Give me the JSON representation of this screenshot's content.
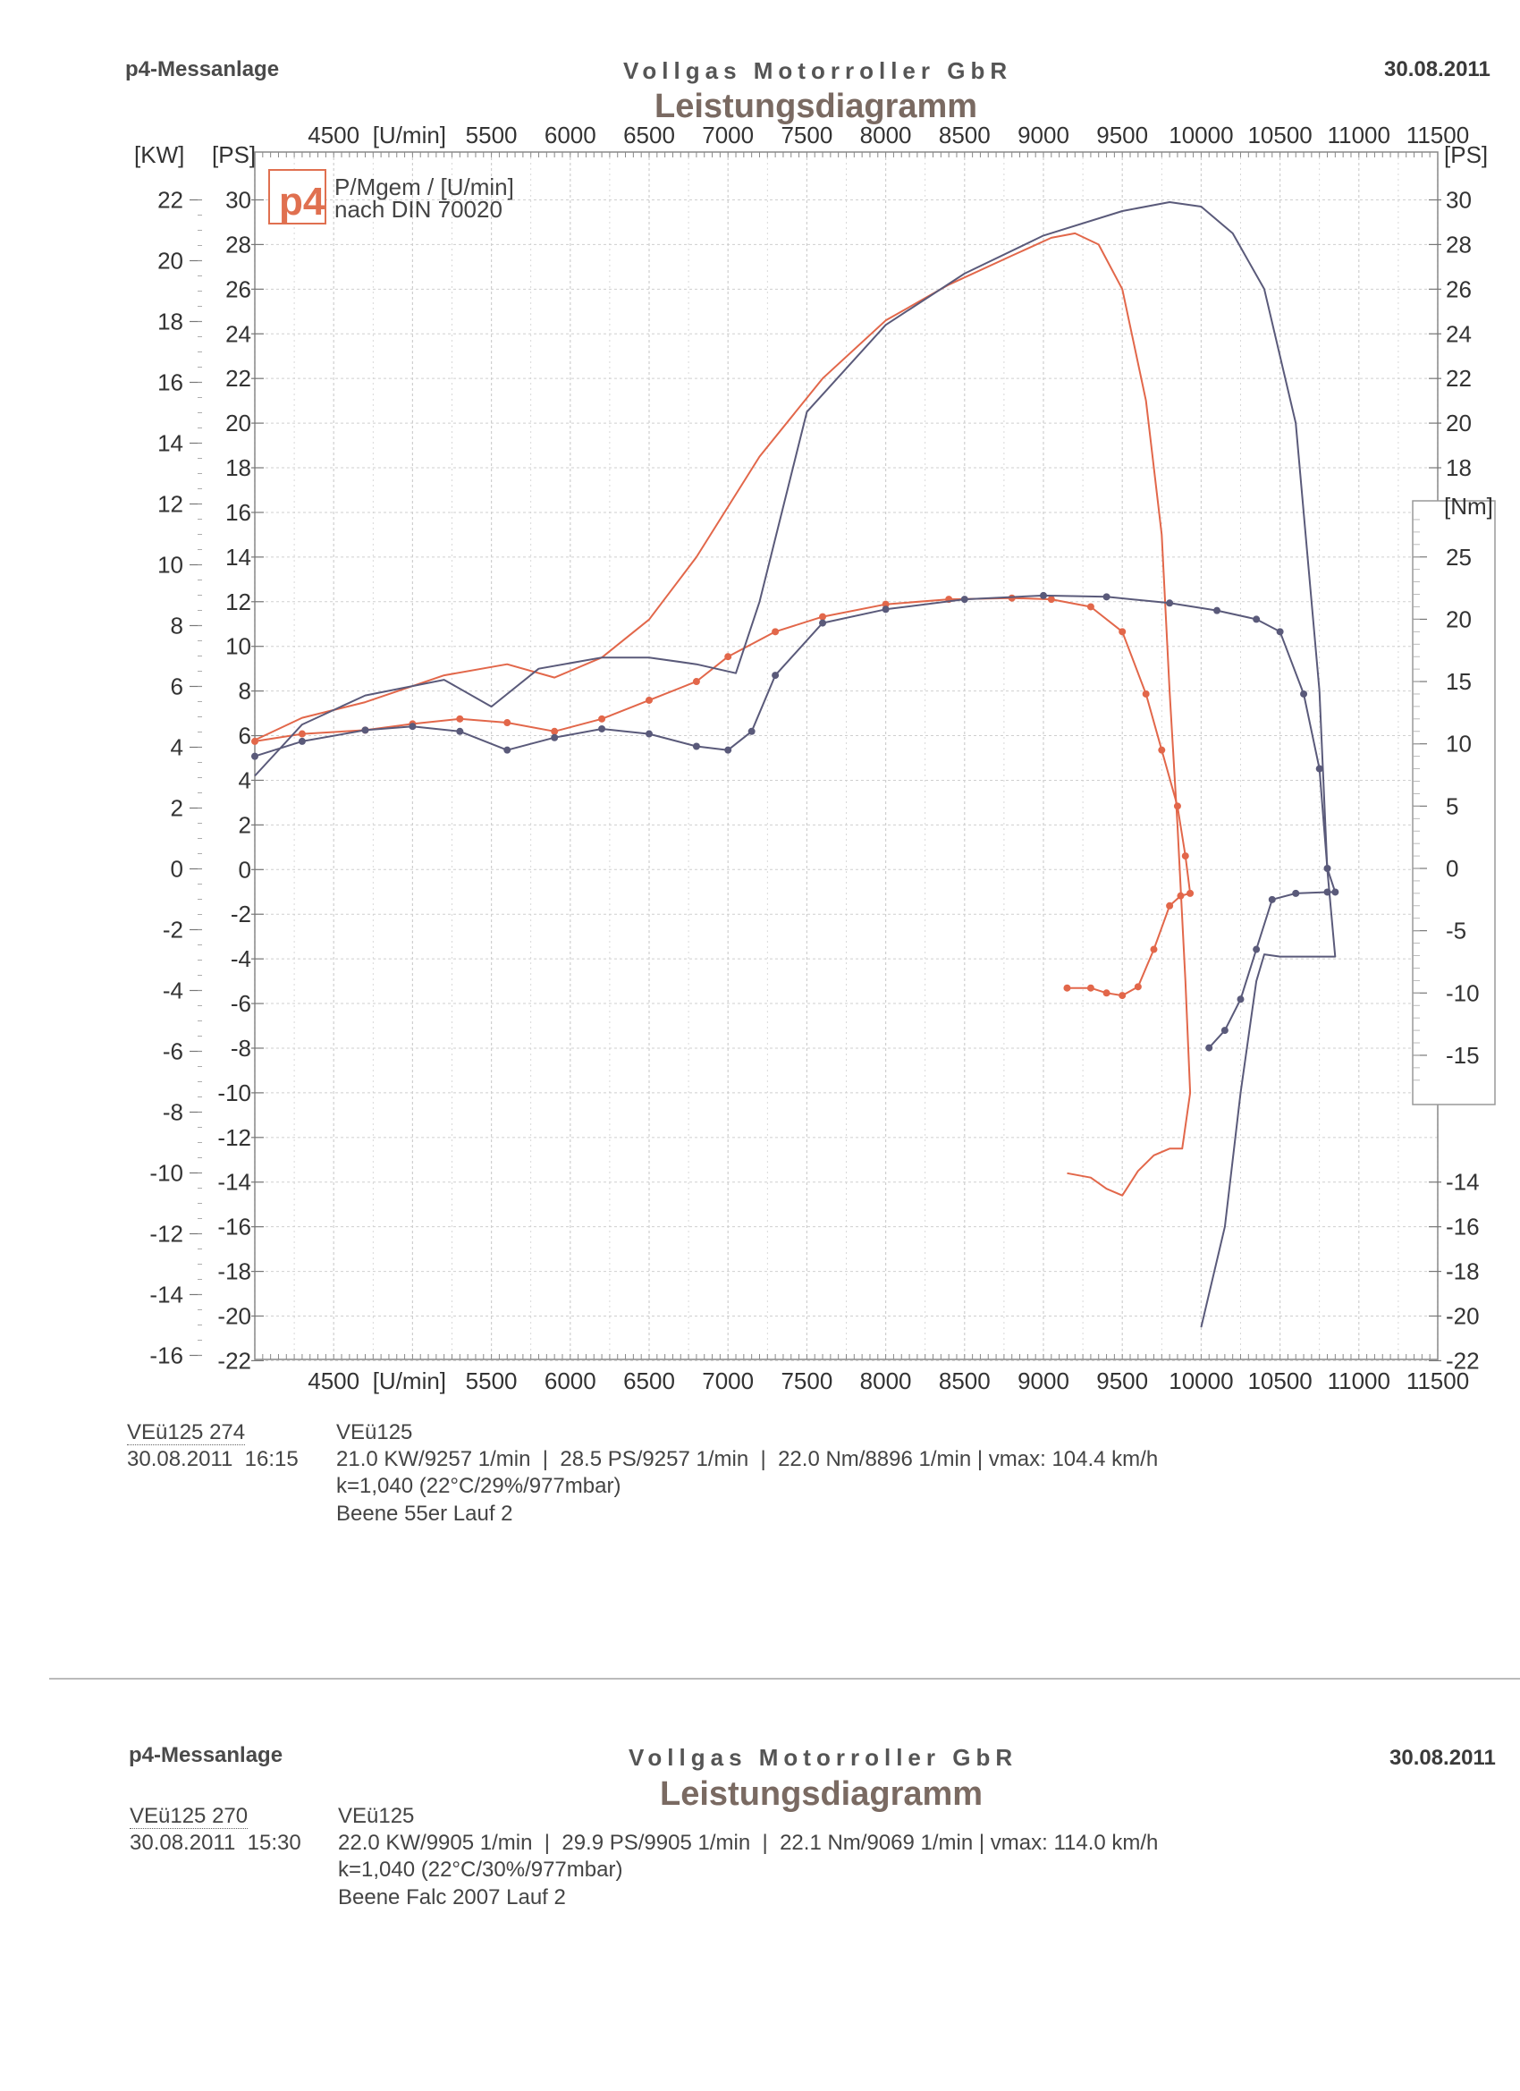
{
  "sheet1": {
    "brand": "p4-Messanlage",
    "company": "Vollgas Motorroller GbR",
    "title": "Leistungsdiagramm",
    "date": "30.08.2011",
    "run": {
      "id": "VEü125 274",
      "vehicle": "VEü125",
      "datetime": "30.08.2011  16:15",
      "summary": "21.0 KW/9257 1/min  |  28.5 PS/9257 1/min  |  22.0 Nm/8896 1/min | vmax: 104.4 km/h",
      "correction": "k=1,040 (22°C/29%/977mbar)",
      "note": "Beene 55er Lauf 2"
    }
  },
  "sheet2": {
    "brand": "p4-Messanlage",
    "company": "Vollgas Motorroller GbR",
    "title": "Leistungsdiagramm",
    "date": "30.08.2011",
    "run": {
      "id": "VEü125 270",
      "vehicle": "VEü125",
      "datetime": "30.08.2011  15:30",
      "summary": "22.0 KW/9905 1/min  |  29.9 PS/9905 1/min  |  22.1 Nm/9069 1/min | vmax: 114.0 km/h",
      "correction": "k=1,040 (22°C/30%/977mbar)",
      "note": "Beene Falc 2007 Lauf 2"
    }
  },
  "colors": {
    "run_274": "#e2674a",
    "run_270": "#5a5a7a",
    "grid": "#cfcfcf"
  },
  "chart_data": {
    "type": "line",
    "legend_logo": "p4",
    "legend_lines": [
      "P/Mgem / [U/min]",
      "nach DIN 70020"
    ],
    "x_axis": {
      "unit": "[U/min]",
      "range": [
        4000,
        11500
      ],
      "ticks": [
        4500,
        5500,
        6000,
        6500,
        7000,
        7500,
        8000,
        8500,
        9000,
        9500,
        10000,
        10500,
        11000,
        11500
      ]
    },
    "kw_axis": {
      "label": "[KW]",
      "range": [
        -16,
        22
      ],
      "ticks": [
        22,
        20,
        18,
        16,
        14,
        12,
        10,
        8,
        6,
        4,
        2,
        0,
        -2,
        -4,
        -6,
        -8,
        -10,
        -12,
        -14,
        -16
      ]
    },
    "ps_axis": {
      "label": "[PS]",
      "range": [
        -22,
        30
      ],
      "ticks": [
        30,
        28,
        26,
        24,
        22,
        20,
        18,
        16,
        14,
        12,
        10,
        8,
        6,
        4,
        2,
        0,
        -2,
        -4,
        -6,
        -8,
        -10,
        -12,
        -14,
        -16,
        -18,
        -20,
        -22
      ]
    },
    "ps_right_ticks_top": [
      30,
      28,
      26,
      24,
      22,
      20,
      18
    ],
    "ps_right_ticks_bottom": [
      -14,
      -16,
      -18,
      -20,
      -22
    ],
    "nm_axis": {
      "label": "[Nm]",
      "ticks": [
        25,
        20,
        15,
        10,
        5,
        0,
        -5,
        -10,
        -15
      ]
    },
    "series": [
      {
        "name": "VEü125 274",
        "kind": "power_ps",
        "x": [
          4000,
          4300,
          4700,
          5200,
          5600,
          5900,
          6200,
          6500,
          6800,
          7200,
          7600,
          8000,
          8400,
          8800,
          9050,
          9200,
          9350,
          9500,
          9650,
          9750,
          9800,
          9850,
          9900,
          9930,
          9880,
          9800,
          9700,
          9600,
          9500,
          9400,
          9300,
          9150
        ],
        "y": [
          5.8,
          6.8,
          7.5,
          8.7,
          9.2,
          8.6,
          9.5,
          11.2,
          14.0,
          18.5,
          22.0,
          24.6,
          26.2,
          27.5,
          28.3,
          28.5,
          28.0,
          26.0,
          21.0,
          15.0,
          8.0,
          2.0,
          -5.0,
          -10.0,
          -12.5,
          -12.5,
          -12.8,
          -13.5,
          -14.6,
          -14.3,
          -13.8,
          -13.6
        ]
      },
      {
        "name": "VEü125 274",
        "kind": "torque_nm",
        "x": [
          4000,
          4300,
          4700,
          5000,
          5300,
          5600,
          5900,
          6200,
          6500,
          6800,
          7000,
          7300,
          7600,
          8000,
          8400,
          8800,
          9050,
          9300,
          9500,
          9650,
          9750,
          9850,
          9900,
          9930,
          9870,
          9800,
          9700,
          9600,
          9500,
          9400,
          9300,
          9150
        ],
        "y": [
          10.2,
          10.8,
          11.1,
          11.6,
          12.0,
          11.7,
          11.0,
          12.0,
          13.5,
          15.0,
          17.0,
          19.0,
          20.2,
          21.2,
          21.6,
          21.7,
          21.6,
          21.0,
          19.0,
          14.0,
          9.5,
          5.0,
          1.0,
          -2.0,
          -2.2,
          -3.0,
          -6.5,
          -9.5,
          -10.2,
          -10.0,
          -9.6,
          -9.6
        ]
      },
      {
        "name": "VEü125 270",
        "kind": "power_ps",
        "x": [
          4000,
          4300,
          4700,
          5200,
          5500,
          5800,
          6200,
          6500,
          6800,
          7050,
          7200,
          7500,
          8000,
          8500,
          9000,
          9500,
          9800,
          10000,
          10200,
          10400,
          10600,
          10750,
          10800,
          10850,
          10700,
          10500,
          10400,
          10350,
          10250,
          10150,
          10000
        ],
        "y": [
          4.2,
          6.5,
          7.8,
          8.5,
          7.3,
          9.0,
          9.5,
          9.5,
          9.2,
          8.8,
          12.0,
          20.5,
          24.4,
          26.7,
          28.4,
          29.5,
          29.9,
          29.7,
          28.5,
          26.0,
          20.0,
          8.0,
          0.0,
          -3.9,
          -3.9,
          -3.9,
          -3.8,
          -5.0,
          -10.0,
          -16.0,
          -20.5
        ]
      },
      {
        "name": "VEü125 270",
        "kind": "torque_nm",
        "x": [
          4000,
          4300,
          4700,
          5000,
          5300,
          5600,
          5900,
          6200,
          6500,
          6800,
          7000,
          7150,
          7300,
          7600,
          8000,
          8500,
          9000,
          9400,
          9800,
          10100,
          10350,
          10500,
          10650,
          10750,
          10800,
          10850,
          10800,
          10600,
          10450,
          10350,
          10250,
          10150,
          10050
        ],
        "y": [
          9.0,
          10.2,
          11.1,
          11.4,
          11.0,
          9.5,
          10.5,
          11.2,
          10.8,
          9.8,
          9.5,
          11.0,
          15.5,
          19.7,
          20.8,
          21.6,
          21.9,
          21.8,
          21.3,
          20.7,
          20.0,
          19.0,
          14.0,
          8.0,
          0.0,
          -1.9,
          -1.9,
          -2.0,
          -2.5,
          -6.5,
          -10.5,
          -13.0,
          -14.4
        ]
      }
    ]
  }
}
